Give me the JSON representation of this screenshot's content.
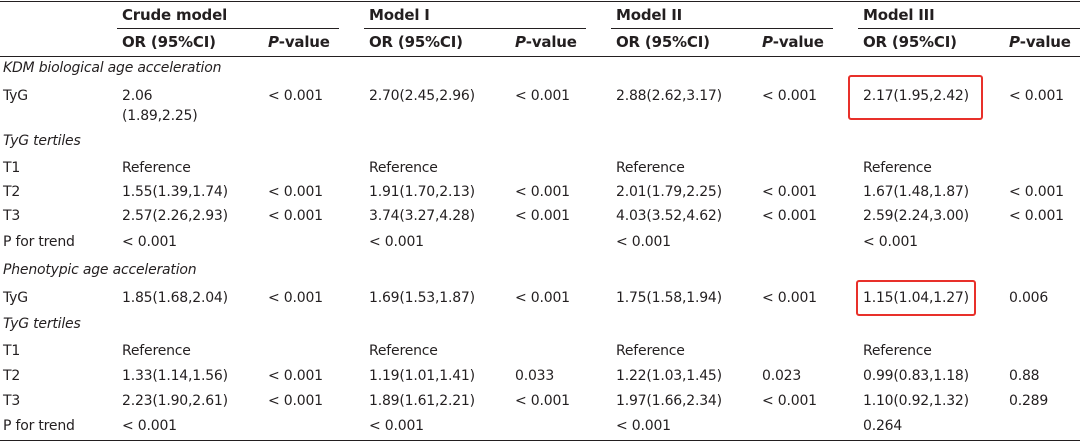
{
  "header": {
    "models": [
      "Crude model",
      "Model I",
      "Model II",
      "Model III"
    ],
    "or_label": "OR (95%CI)",
    "p_label_prefix": "P",
    "p_label_suffix": "-value"
  },
  "sections": [
    {
      "title": "KDM biological age acceleration",
      "tyg": {
        "label": "TyG",
        "cells": [
          "2.06",
          "(1.89,2.25)",
          "< 0.001",
          "2.70(2.45,2.96)",
          "< 0.001",
          "2.88(2.62,3.17)",
          "< 0.001",
          "2.17(1.95,2.42)",
          "< 0.001"
        ]
      },
      "tertiles_title": "TyG tertiles",
      "rows": [
        {
          "label": "T1",
          "cells": [
            "Reference",
            "",
            "Reference",
            "",
            "Reference",
            "",
            "Reference",
            ""
          ]
        },
        {
          "label": "T2",
          "cells": [
            "1.55(1.39,1.74)",
            "< 0.001",
            "1.91(1.70,2.13)",
            "< 0.001",
            "2.01(1.79,2.25)",
            "< 0.001",
            "1.67(1.48,1.87)",
            "< 0.001"
          ]
        },
        {
          "label": "T3",
          "cells": [
            "2.57(2.26,2.93)",
            "< 0.001",
            "3.74(3.27,4.28)",
            "< 0.001",
            "4.03(3.52,4.62)",
            "< 0.001",
            "2.59(2.24,3.00)",
            "< 0.001"
          ]
        },
        {
          "label": "P for trend",
          "cells": [
            "< 0.001",
            "",
            "< 0.001",
            "",
            "< 0.001",
            "",
            "< 0.001",
            ""
          ]
        }
      ]
    },
    {
      "title": "Phenotypic age acceleration",
      "tyg": {
        "label": "TyG",
        "cells": [
          "1.85(1.68,2.04)",
          "",
          "< 0.001",
          "1.69(1.53,1.87)",
          "< 0.001",
          "1.75(1.58,1.94)",
          "< 0.001",
          "1.15(1.04,1.27)",
          "0.006"
        ]
      },
      "tertiles_title": "TyG tertiles",
      "rows": [
        {
          "label": "T1",
          "cells": [
            "Reference",
            "",
            "Reference",
            "",
            "Reference",
            "",
            "Reference",
            ""
          ]
        },
        {
          "label": "T2",
          "cells": [
            "1.33(1.14,1.56)",
            "< 0.001",
            "1.19(1.01,1.41)",
            "0.033",
            "1.22(1.03,1.45)",
            "0.023",
            "0.99(0.83,1.18)",
            "0.88"
          ]
        },
        {
          "label": "T3",
          "cells": [
            "2.23(1.90,2.61)",
            "< 0.001",
            "1.89(1.61,2.21)",
            "< 0.001",
            "1.97(1.66,2.34)",
            "< 0.001",
            "1.10(0.92,1.32)",
            "0.289"
          ]
        },
        {
          "label": "P for trend",
          "cells": [
            "< 0.001",
            "",
            "< 0.001",
            "",
            "< 0.001",
            "",
            "0.264",
            ""
          ]
        }
      ]
    }
  ],
  "highlight_color": "#e8302a"
}
